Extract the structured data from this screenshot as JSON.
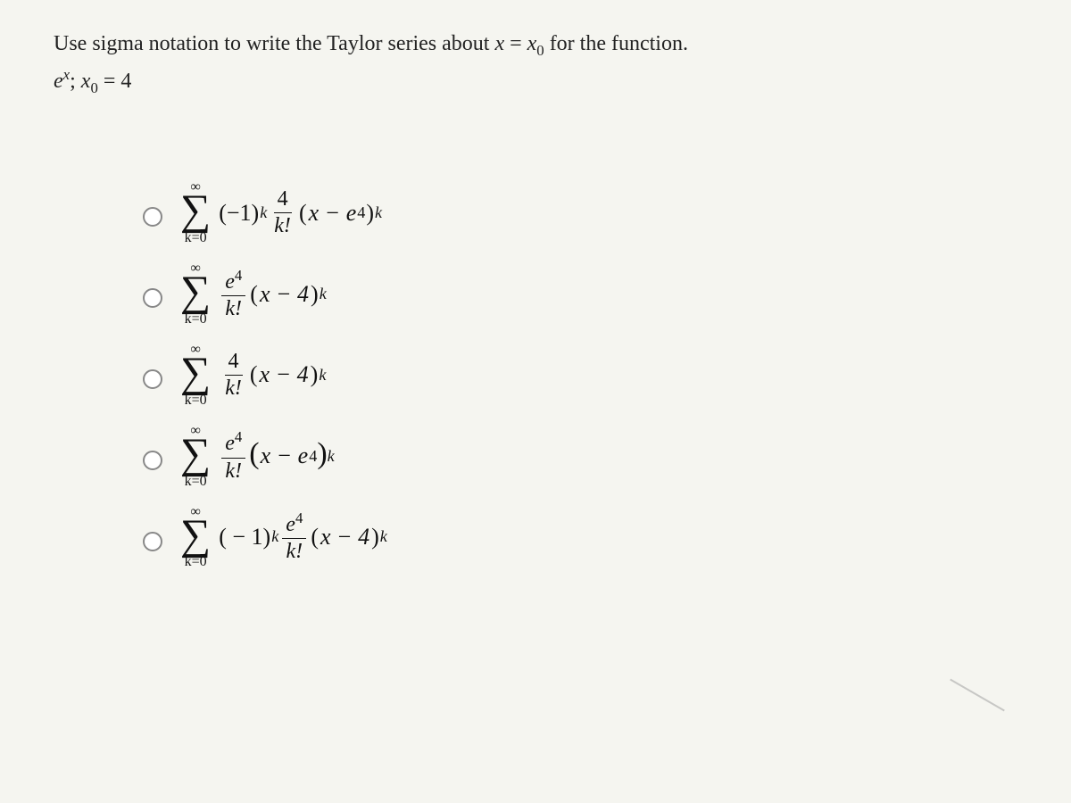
{
  "question": {
    "line1_pre": "Use sigma notation to write the Taylor series about ",
    "var_x": "x",
    "eq": " = ",
    "x0": "x",
    "x0_sub": "0",
    "line1_post": " for the function.",
    "func_e": "e",
    "func_exp": "x",
    "sep": "; ",
    "given_x0": "x",
    "given_x0_sub": "0",
    "given_eq": " = 4"
  },
  "sigma": {
    "top": "∞",
    "symbol": "∑",
    "bottom": "k=0"
  },
  "options": [
    {
      "pre": "(−1)",
      "pre_sup": "k",
      "frac_num": "4",
      "frac_den": "k!",
      "tail_open": "(",
      "tail_inner": "x − e",
      "tail_inner_sup": "4",
      "tail_close": ")",
      "tail_sup": "k",
      "big_paren": false
    },
    {
      "pre": "",
      "pre_sup": "",
      "frac_num_e": "e",
      "frac_num_sup": "4",
      "frac_den": "k!",
      "tail_open": "(",
      "tail_inner": "x − 4",
      "tail_inner_sup": "",
      "tail_close": ")",
      "tail_sup": "k",
      "big_paren": false
    },
    {
      "pre": "",
      "pre_sup": "",
      "frac_num": "4",
      "frac_den": "k!",
      "tail_open": "(",
      "tail_inner": "x − 4",
      "tail_inner_sup": "",
      "tail_close": ")",
      "tail_sup": "k",
      "big_paren": false
    },
    {
      "pre": "",
      "pre_sup": "",
      "frac_num_e": "e",
      "frac_num_sup": "4",
      "frac_den": "k!",
      "tail_open": "(",
      "tail_inner": "x − e",
      "tail_inner_sup": "4",
      "tail_close": ")",
      "tail_sup": "k",
      "big_paren": true
    },
    {
      "pre": "( − 1)",
      "pre_sup": "k",
      "frac_num_e": "e",
      "frac_num_sup": "4",
      "frac_den": "k!",
      "tail_open": "(",
      "tail_inner": "x − 4",
      "tail_inner_sup": "",
      "tail_close": ")",
      "tail_sup": "k",
      "big_paren": false
    }
  ],
  "colors": {
    "page_bg": "#f5f5f0",
    "text": "#111111",
    "radio_border": "#888888"
  }
}
